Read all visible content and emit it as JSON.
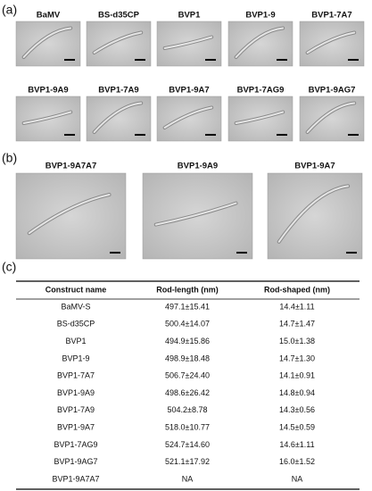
{
  "panels": {
    "a": {
      "label": "(a)",
      "images": [
        "BaMV",
        "BS-d35CP",
        "BVP1",
        "BVP1-9",
        "BVP1-7A7",
        "BVP1-9A9",
        "BVP1-7A9",
        "BVP1-9A7",
        "BVP1-7AG9",
        "BVP1-9AG7"
      ]
    },
    "b": {
      "label": "(b)",
      "images": [
        "BVP1-9A7A7",
        "BVP1-9A9",
        "BVP1-9A7"
      ]
    },
    "c": {
      "label": "(c)"
    }
  },
  "table": {
    "headers": [
      "Construct name",
      "Rod-length (nm)",
      "Rod-shaped (nm)"
    ],
    "rows": [
      [
        "BaMV-S",
        "497.1±15.41",
        "14.4±1.11"
      ],
      [
        "BS-d35CP",
        "500.4±14.07",
        "14.7±1.47"
      ],
      [
        "BVP1",
        "494.9±15.86",
        "15.0±1.38"
      ],
      [
        "BVP1-9",
        "498.9±18.48",
        "14.7±1.30"
      ],
      [
        "BVP1-7A7",
        "506.7±24.40",
        "14.1±0.91"
      ],
      [
        "BVP1-9A9",
        "498.6±26.42",
        "14.8±0.94"
      ],
      [
        "BVP1-7A9",
        "504.2±8.78",
        "14.3±0.56"
      ],
      [
        "BVP1-9A7",
        "518.0±10.77",
        "14.5±0.59"
      ],
      [
        "BVP1-7AG9",
        "524.7±14.60",
        "14.6±1.11"
      ],
      [
        "BVP1-9AG7",
        "521.1±17.92",
        "16.0±1.52"
      ],
      [
        "BVP1-9A7A7",
        "NA",
        "NA"
      ]
    ]
  }
}
